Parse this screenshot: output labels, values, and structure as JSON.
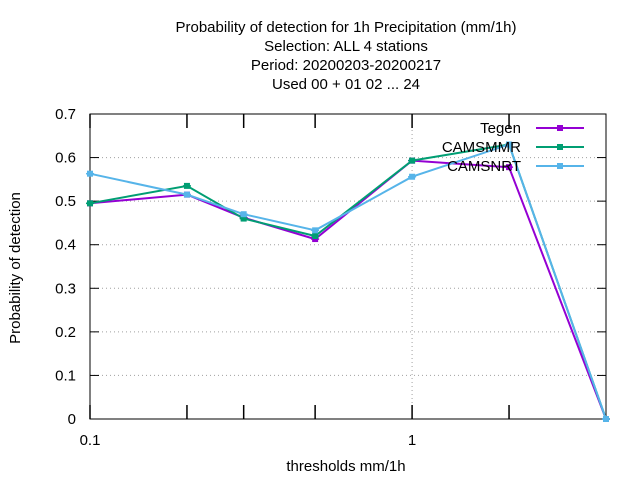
{
  "chart_data": {
    "type": "line",
    "title_lines": [
      "Probability of detection  for 1h Precipitation (mm/1h)",
      "Selection: ALL      4 stations",
      "Period: 20200203-20200217",
      "Used  00 + 01 02 ... 24"
    ],
    "xlabel": "thresholds mm/1h",
    "ylabel": "Probability of detection",
    "x_scale": "log",
    "xlim": [
      0.1,
      4
    ],
    "ylim": [
      0,
      0.7
    ],
    "x_tick_labels": [
      "0.1",
      "1"
    ],
    "x_minor_ticks": [
      0.2,
      0.3,
      0.5,
      2
    ],
    "y_ticks": [
      0,
      0.1,
      0.2,
      0.3,
      0.4,
      0.5,
      0.6,
      0.7
    ],
    "y_tick_labels": [
      "0",
      "0.1",
      "0.2",
      "0.3",
      "0.4",
      "0.5",
      "0.6",
      "0.7"
    ],
    "grid": true,
    "legend_position": "top-right",
    "x": [
      0.1,
      0.2,
      0.3,
      0.5,
      1,
      2,
      4
    ],
    "series": [
      {
        "name": "Tegen",
        "color": "#9400d3",
        "values": [
          0.495,
          0.515,
          0.462,
          0.413,
          0.593,
          0.578,
          0.0
        ]
      },
      {
        "name": "CAMSMMR",
        "color": "#009e73",
        "values": [
          0.495,
          0.535,
          0.46,
          0.42,
          0.593,
          0.63,
          0.0
        ]
      },
      {
        "name": "CAMSNRT",
        "color": "#56b4e9",
        "values": [
          0.563,
          0.515,
          0.47,
          0.433,
          0.556,
          0.63,
          0.0
        ]
      }
    ]
  }
}
